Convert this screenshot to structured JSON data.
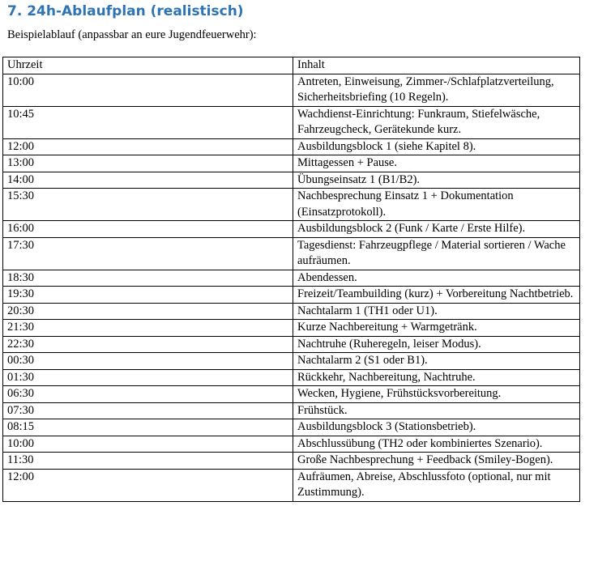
{
  "header": {
    "title": "7. 24h-Ablaufplan (realistisch)",
    "intro": "Beispielablauf (anpassbar an eure Jugendfeuerwehr):"
  },
  "table": {
    "columns": [
      "Uhrzeit",
      "Inhalt"
    ],
    "rows": [
      [
        "10:00",
        "Antreten, Einweisung, Zimmer-/Schlafplatzverteilung, Sicherheitsbriefing (10 Regeln)."
      ],
      [
        "10:45",
        "Wachdienst-Einrichtung: Funkraum, Stiefelwäsche, Fahrzeugcheck, Gerätekunde kurz."
      ],
      [
        "12:00",
        "Ausbildungsblock 1 (siehe Kapitel 8)."
      ],
      [
        "13:00",
        "Mittagessen + Pause."
      ],
      [
        "14:00",
        "Übungseinsatz 1 (B1/B2)."
      ],
      [
        "15:30",
        "Nachbesprechung Einsatz 1 + Dokumentation (Einsatzprotokoll)."
      ],
      [
        "16:00",
        "Ausbildungsblock 2 (Funk / Karte / Erste Hilfe)."
      ],
      [
        "17:30",
        "Tagesdienst: Fahrzeugpflege / Material sortieren / Wache aufräumen."
      ],
      [
        "18:30",
        "Abendessen."
      ],
      [
        "19:30",
        "Freizeit/Teambuilding (kurz) + Vorbereitung Nachtbetrieb."
      ],
      [
        "20:30",
        "Nachtalarm 1 (TH1 oder U1)."
      ],
      [
        "21:30",
        "Kurze Nachbereitung + Warmgetränk."
      ],
      [
        "22:30",
        "Nachtruhe (Ruheregeln, leiser Modus)."
      ],
      [
        "00:30",
        "Nachtalarm 2 (S1 oder B1)."
      ],
      [
        "01:30",
        "Rückkehr, Nachbereitung, Nachtruhe."
      ],
      [
        "06:30",
        "Wecken, Hygiene, Frühstücksvorbereitung."
      ],
      [
        "07:30",
        "Frühstück."
      ],
      [
        "08:15",
        "Ausbildungsblock 3 (Stationsbetrieb)."
      ],
      [
        "10:00",
        "Abschlussübung (TH2 oder kombiniertes Szenario)."
      ],
      [
        "11:30",
        "Große Nachbesprechung + Feedback (Smiley-Bogen)."
      ],
      [
        "12:00",
        "Aufräumen, Abreise, Abschlussfoto (optional, nur mit Zustimmung)."
      ]
    ]
  }
}
